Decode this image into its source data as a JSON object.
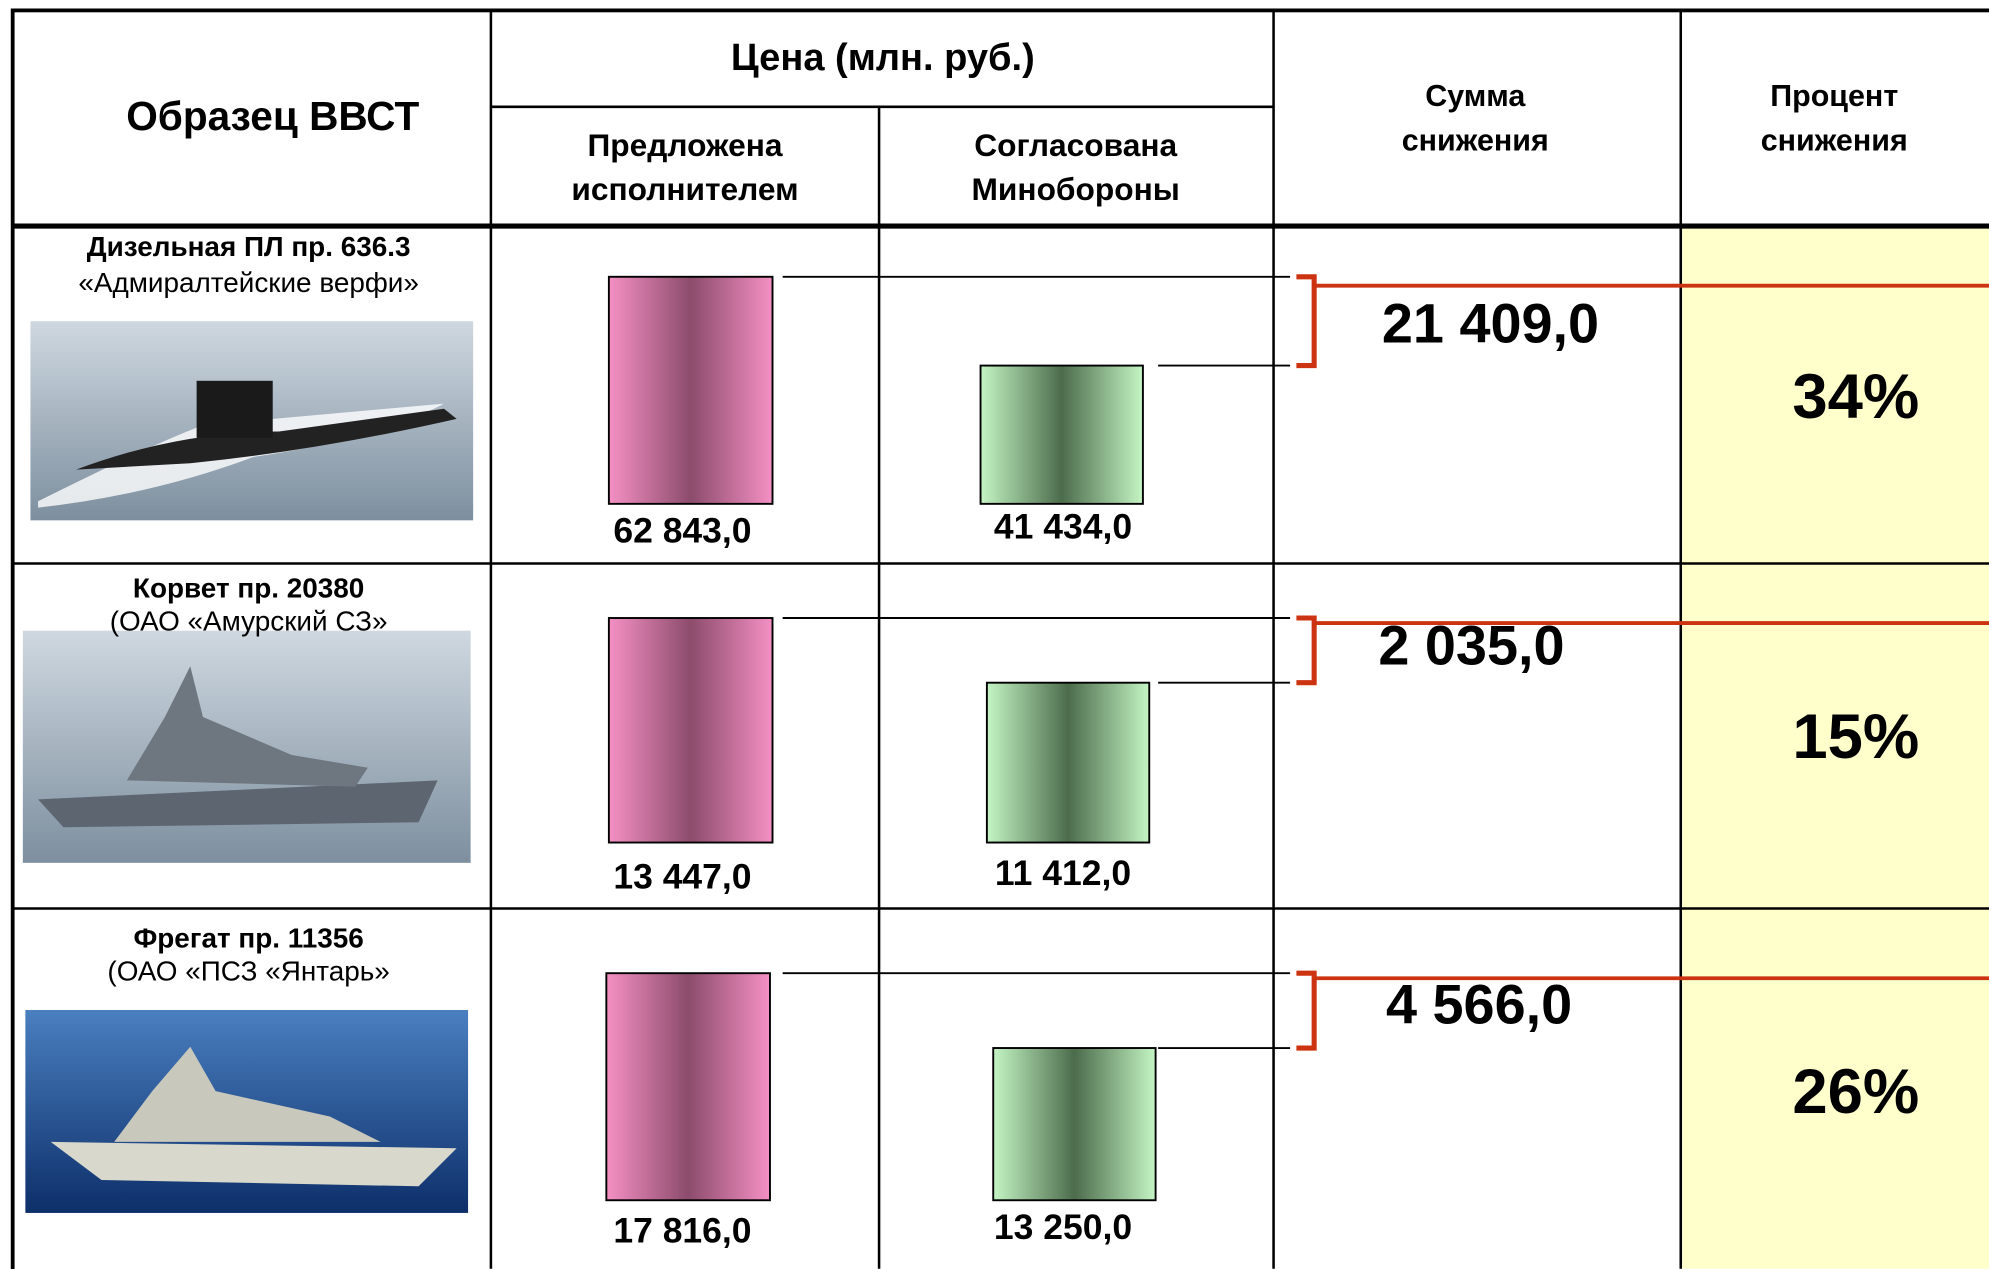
{
  "header": {
    "sample": "Образец ВВСТ",
    "price": "Цена (млн. руб.)",
    "proposed": [
      "Предложена",
      "исполнителем"
    ],
    "agreed": [
      "Согласована",
      "Минобороны"
    ],
    "reduction_sum": [
      "Сумма",
      "снижения"
    ],
    "reduction_percent": [
      "Процент",
      "снижения"
    ]
  },
  "rows": [
    {
      "name": "Дизельная ПЛ пр. 636.3",
      "maker": "«Адмиралтейские верфи»",
      "proposed": "62 843,0",
      "agreed": "41 434,0",
      "reduction": "21 409,0",
      "percent": "34%"
    },
    {
      "name": "Корвет пр. 20380",
      "maker": "(ОАО «Амурский СЗ»",
      "proposed": "13 447,0",
      "agreed": "11 412,0",
      "reduction": "2 035,0",
      "percent": "15%"
    },
    {
      "name": "Фрегат пр. 11356",
      "maker": "(ОАО «ПСЗ «Янтарь»",
      "proposed": "17 816,0",
      "agreed": "13 250,0",
      "reduction": "4 566,0",
      "percent": "26%"
    }
  ]
}
